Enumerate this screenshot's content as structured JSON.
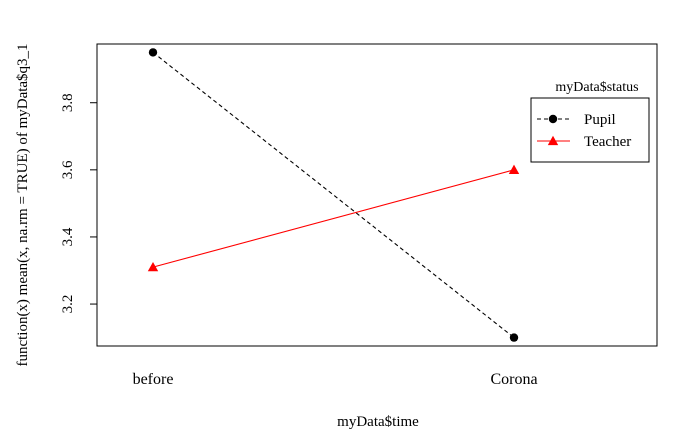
{
  "chart_data": {
    "type": "line",
    "title": "",
    "xlabel": "myData$time",
    "ylabel": "function(x) mean(x, na.rm = TRUE) of  myData$q3_1",
    "categories": [
      "before",
      "Corona"
    ],
    "series": [
      {
        "name": "Pupil",
        "values": [
          3.95,
          3.1
        ],
        "color": "#000000",
        "line_style": "dashed",
        "marker": "circle"
      },
      {
        "name": "Teacher",
        "values": [
          3.31,
          3.6
        ],
        "color": "#ff0000",
        "line_style": "solid",
        "marker": "triangle"
      }
    ],
    "ylim": [
      3.075,
      3.975
    ],
    "yticks": [
      "3.2",
      "3.4",
      "3.6",
      "3.8"
    ],
    "grid": false,
    "legend": {
      "title": "myData$status",
      "placement": "top-right"
    }
  }
}
